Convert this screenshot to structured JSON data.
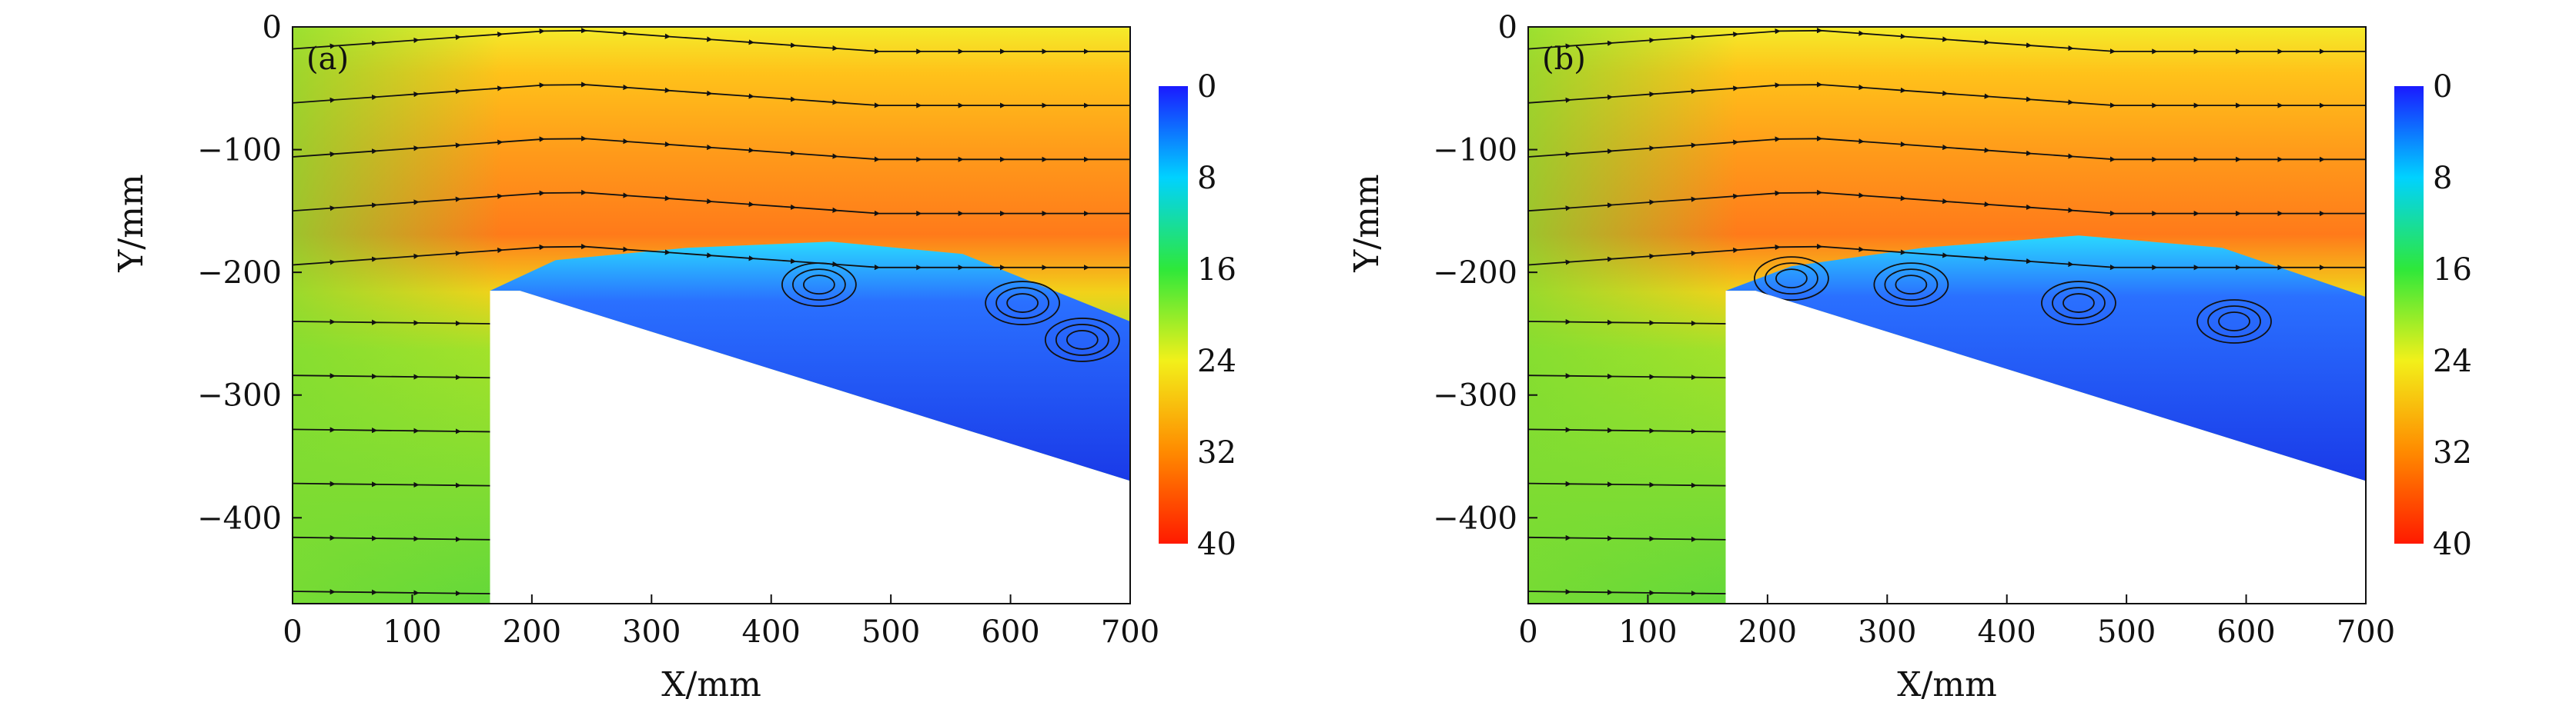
{
  "chart_data": [
    {
      "type": "heatmap",
      "panel_label": "(a)",
      "xlabel": "X/mm",
      "ylabel": "Y/mm",
      "xlim": [
        0,
        700
      ],
      "ylim": [
        -470,
        0
      ],
      "x_ticks": [
        0,
        100,
        200,
        300,
        400,
        500,
        600,
        700
      ],
      "y_ticks": [
        0,
        -100,
        -200,
        -300,
        -400
      ],
      "colorbar": {
        "min": 0,
        "max": 40,
        "ticks": [
          0,
          8,
          16,
          24,
          32,
          40
        ],
        "colormap": "jet",
        "reversed": true
      },
      "body_outline": [
        [
          165,
          -470
        ],
        [
          165,
          -215
        ],
        [
          190,
          -215
        ],
        [
          700,
          -370
        ],
        [
          700,
          -470
        ]
      ],
      "separation_bubble": [
        [
          165,
          -215
        ],
        [
          220,
          -190
        ],
        [
          330,
          -180
        ],
        [
          450,
          -175
        ],
        [
          560,
          -185
        ],
        [
          700,
          -240
        ],
        [
          700,
          -370
        ],
        [
          190,
          -215
        ]
      ],
      "vortex_centers": [
        [
          440,
          -210
        ],
        [
          610,
          -225
        ],
        [
          660,
          -255
        ]
      ]
    },
    {
      "type": "heatmap",
      "panel_label": "(b)",
      "xlabel": "X/mm",
      "ylabel": "Y/mm",
      "xlim": [
        0,
        700
      ],
      "ylim": [
        -470,
        0
      ],
      "x_ticks": [
        0,
        100,
        200,
        300,
        400,
        500,
        600,
        700
      ],
      "y_ticks": [
        0,
        -100,
        -200,
        -300,
        -400
      ],
      "colorbar": {
        "min": 0,
        "max": 40,
        "ticks": [
          0,
          8,
          16,
          24,
          32,
          40
        ],
        "colormap": "jet",
        "reversed": true
      },
      "body_outline": [
        [
          165,
          -470
        ],
        [
          165,
          -215
        ],
        [
          190,
          -215
        ],
        [
          700,
          -370
        ],
        [
          700,
          -470
        ]
      ],
      "separation_bubble": [
        [
          165,
          -215
        ],
        [
          220,
          -195
        ],
        [
          330,
          -180
        ],
        [
          460,
          -170
        ],
        [
          580,
          -180
        ],
        [
          700,
          -220
        ],
        [
          700,
          -370
        ],
        [
          190,
          -215
        ]
      ],
      "vortex_centers": [
        [
          220,
          -205
        ],
        [
          320,
          -210
        ],
        [
          460,
          -225
        ],
        [
          590,
          -240
        ]
      ]
    }
  ]
}
